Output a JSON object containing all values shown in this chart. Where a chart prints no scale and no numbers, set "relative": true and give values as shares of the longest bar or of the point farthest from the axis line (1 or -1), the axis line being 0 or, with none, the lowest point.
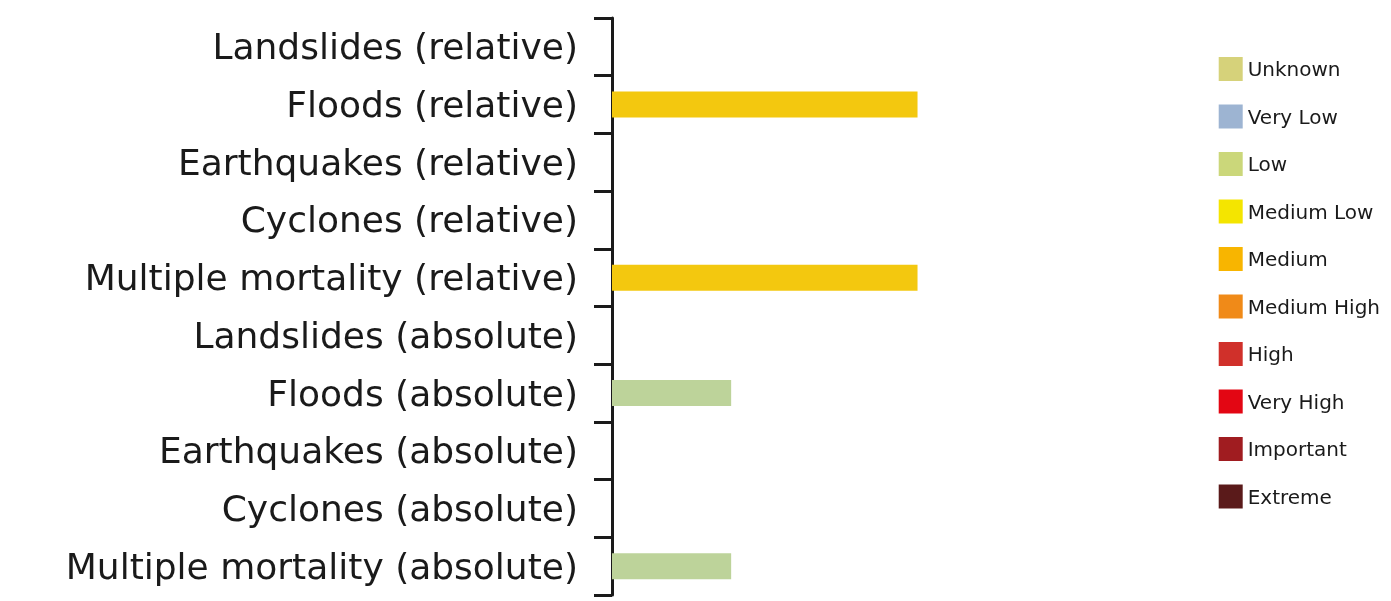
{
  "chart_data": {
    "type": "bar",
    "orientation": "horizontal",
    "relative": true,
    "legend": "right",
    "grid": false,
    "categories": [
      "Landslides (relative)",
      "Floods (relative)",
      "Earthquakes (relative)",
      "Cyclones (relative)",
      "Multiple mortality (relative)",
      "Landslides (absolute)",
      "Floods (absolute)",
      "Earthquakes (absolute)",
      "Cyclones (absolute)",
      "Multiple mortality (absolute)"
    ],
    "series": [
      {
        "color": "#f3c80f",
        "colors": [
          null,
          "#f3c80f",
          null,
          null,
          "#f3c80f",
          null,
          "#bdd39a",
          null,
          null,
          "#bdd39a"
        ],
        "values": [
          null,
          1,
          null,
          null,
          1,
          null,
          0.39,
          null,
          null,
          0.39
        ]
      },
      {
        "name": "Unknown",
        "color": "#d6d27a",
        "values": [
          null,
          null,
          null,
          null,
          null,
          null,
          null,
          null,
          null,
          null
        ]
      },
      {
        "name": "Very Low",
        "color": "#9db4d2",
        "values": [
          null,
          null,
          null,
          null,
          null,
          null,
          null,
          null,
          null,
          null
        ]
      },
      {
        "name": "Low",
        "color": "#cbd77a",
        "values": [
          null,
          null,
          null,
          null,
          null,
          null,
          null,
          null,
          null,
          null
        ]
      },
      {
        "name": "Medium Low",
        "color": "#f4e500",
        "values": [
          null,
          null,
          null,
          null,
          null,
          null,
          null,
          null,
          null,
          null
        ]
      },
      {
        "name": "Medium",
        "color": "#f8b500",
        "values": [
          null,
          null,
          null,
          null,
          null,
          null,
          null,
          null,
          null,
          null
        ]
      },
      {
        "name": "Medium High",
        "color": "#f08a18",
        "values": [
          null,
          null,
          null,
          null,
          null,
          null,
          null,
          null,
          null,
          null
        ]
      },
      {
        "name": "High",
        "color": "#d0302a",
        "values": [
          null,
          null,
          null,
          null,
          null,
          null,
          null,
          null,
          null,
          null
        ]
      },
      {
        "name": "Very High",
        "color": "#e30613",
        "values": [
          null,
          null,
          null,
          null,
          null,
          null,
          null,
          null,
          null,
          null
        ]
      },
      {
        "name": "Important",
        "color": "#a01c20",
        "values": [
          null,
          null,
          null,
          null,
          null,
          null,
          null,
          null,
          null,
          null
        ]
      },
      {
        "name": "Extreme",
        "color": "#5a1a1a",
        "values": [
          null,
          null,
          null,
          null,
          null,
          null,
          null,
          null,
          null,
          null
        ]
      }
    ]
  }
}
